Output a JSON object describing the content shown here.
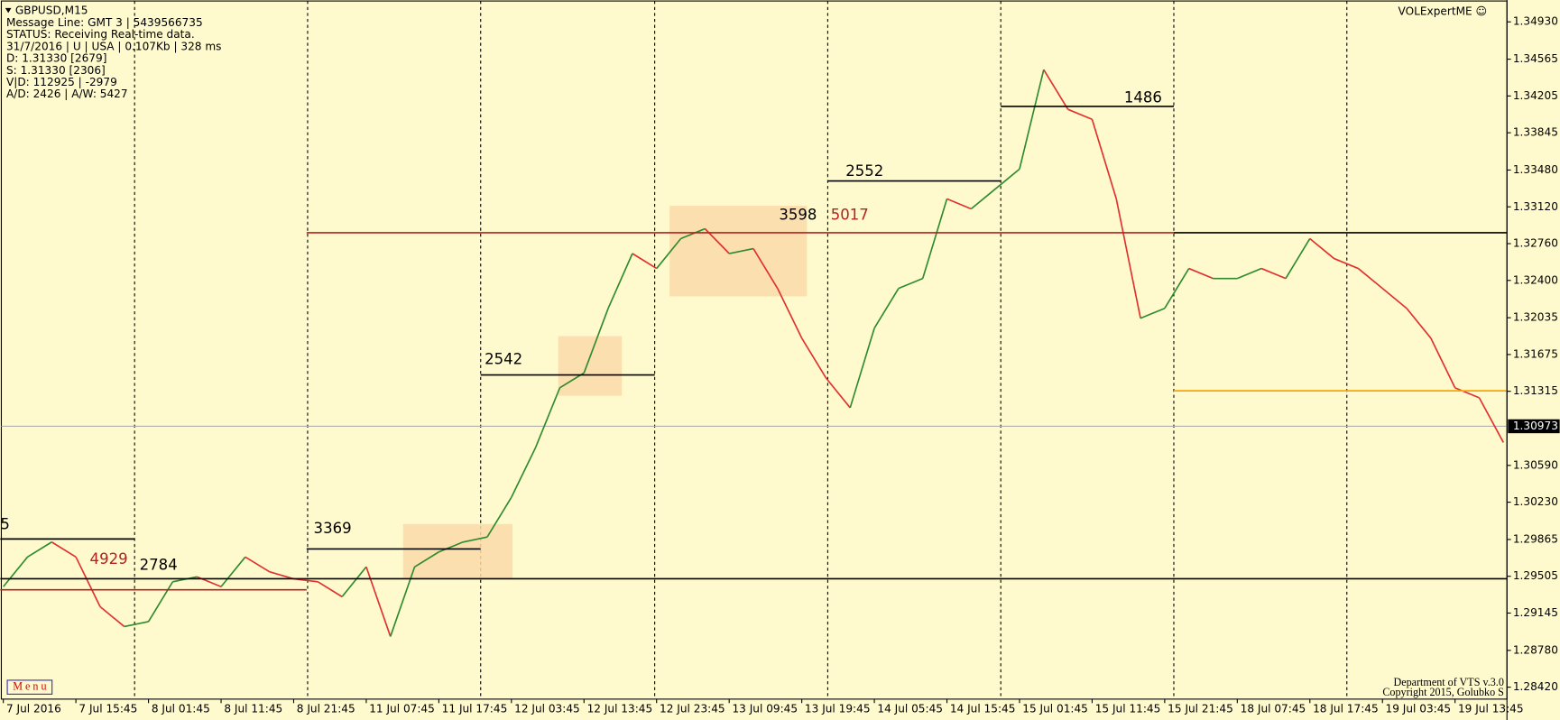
{
  "chart_data": {
    "type": "line",
    "title": "GBPUSD,M15",
    "info_lines": [
      "Message Line: GMT 3 | 5439566735",
      "STATUS:  Receiving Real-time data.",
      "31/7/2016 | U | USA | 0.107Kb | 328 ms",
      "D: 1.31330  [2679]",
      "S: 1.31330  [2306]",
      "V|D: 112925 | -2979",
      "A/D: 2426 | A/W: 5427"
    ],
    "watermark": "VOLExpertME ☺",
    "menu": "M e n u",
    "footer": [
      "Department of VTS  v.3.0",
      "Copyright 2015, Golubko S"
    ],
    "categories": [
      "7 Jul 2016",
      null,
      null,
      "7 Jul 15:45",
      null,
      null,
      "8 Jul 01:45",
      null,
      null,
      "8 Jul 11:45",
      null,
      null,
      "8 Jul 21:45",
      null,
      null,
      "11 Jul 07:45",
      null,
      null,
      "11 Jul 17:45",
      null,
      null,
      "12 Jul 03:45",
      null,
      null,
      "12 Jul 13:45",
      null,
      null,
      "12 Jul 23:45",
      null,
      null,
      "13 Jul 09:45",
      null,
      null,
      "13 Jul 19:45",
      null,
      null,
      "14 Jul 05:45",
      null,
      null,
      "14 Jul 15:45",
      null,
      null,
      "15 Jul 01:45",
      null,
      null,
      "15 Jul 11:45",
      null,
      null,
      "15 Jul 21:45",
      null,
      null,
      "18 Jul 07:45",
      null,
      null,
      "18 Jul 17:45",
      null,
      null,
      "19 Jul 03:45",
      null,
      null,
      "19 Jul 13:45",
      null,
      null
    ],
    "values": [
      1.29403,
      1.29694,
      1.2984,
      1.29694,
      1.29208,
      1.29013,
      1.29062,
      1.29451,
      1.295,
      1.29403,
      1.29694,
      1.29549,
      1.2948,
      1.29451,
      1.29305,
      1.29597,
      1.28916,
      1.29597,
      1.29743,
      1.2984,
      1.29889,
      1.30278,
      1.30765,
      1.31349,
      1.31495,
      1.32127,
      1.32663,
      1.32517,
      1.32809,
      1.32906,
      1.32663,
      1.32711,
      1.32322,
      1.31835,
      1.31446,
      1.31154,
      1.31933,
      1.32322,
      1.32419,
      1.33198,
      1.331,
      1.33295,
      1.3349,
      1.34463,
      1.34074,
      1.33976,
      1.33198,
      1.3203,
      1.32127,
      1.32517,
      1.32419,
      1.32419,
      1.32517,
      1.32419,
      1.32809,
      1.32614,
      1.32517,
      1.32322,
      1.32127,
      1.31835,
      1.31349,
      1.31252,
      1.30814
    ],
    "up_color": "#2e8b2e",
    "down_color": "#e03030",
    "ylim": [
      1.28303,
      1.35144
    ],
    "yticks": [
      {
        "value": 1.3493,
        "label": "1.34930"
      },
      {
        "value": 1.34565,
        "label": "1.34565"
      },
      {
        "value": 1.34205,
        "label": "1.34205"
      },
      {
        "value": 1.33845,
        "label": "1.33845"
      },
      {
        "value": 1.3348,
        "label": "1.33480"
      },
      {
        "value": 1.3312,
        "label": "1.33120"
      },
      {
        "value": 1.3276,
        "label": "1.32760"
      },
      {
        "value": 1.324,
        "label": "1.32400"
      },
      {
        "value": 1.32035,
        "label": "1.32035"
      },
      {
        "value": 1.31675,
        "label": "1.31675"
      },
      {
        "value": 1.31315,
        "label": "1.31315"
      },
      {
        "value": 1.3059,
        "label": "1.30590"
      },
      {
        "value": 1.3023,
        "label": "1.30230"
      },
      {
        "value": 1.29865,
        "label": "1.29865"
      },
      {
        "value": 1.29505,
        "label": "1.29505"
      },
      {
        "value": 1.29145,
        "label": "1.29145"
      },
      {
        "value": 1.2878,
        "label": "1.28780"
      },
      {
        "value": 1.2842,
        "label": "1.28420"
      }
    ],
    "current_price": 1.30973,
    "levels": [
      {
        "price": 1.2987,
        "volume": 5,
        "color": "#000000"
      },
      {
        "price": 1.29373,
        "volume": 4929,
        "color": "#b22222"
      },
      {
        "price": 1.29481,
        "volume": 2784,
        "color": "#000000"
      },
      {
        "price": 1.29772,
        "volume": 3369,
        "color": "#000000"
      },
      {
        "price": 1.31475,
        "volume": 2542,
        "color": "#000000"
      },
      {
        "price": 1.32867,
        "volume": 5017,
        "color": "#b22222"
      },
      {
        "price": 1.33373,
        "volume": 2552,
        "color": "#000000"
      },
      {
        "price": 1.34103,
        "volume": 1486,
        "color": "#000000"
      },
      {
        "price": 1.32867,
        "color": "#000000"
      },
      {
        "price": 1.3132,
        "color": "#ffa500"
      }
    ],
    "zones": [
      {
        "high": 1.30016,
        "low": 1.29481
      },
      {
        "high": 1.31855,
        "low": 1.31271
      },
      {
        "high": 1.3313,
        "low": 1.32244,
        "volume": 3598
      }
    ],
    "zone_color": "#fcd9a8"
  }
}
